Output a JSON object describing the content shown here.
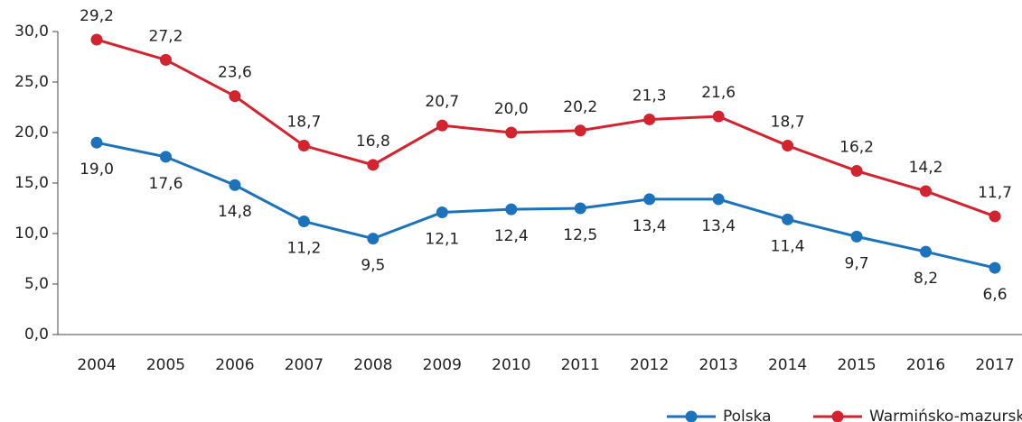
{
  "chart_data": {
    "type": "line",
    "categories": [
      "2004",
      "2005",
      "2006",
      "2007",
      "2008",
      "2009",
      "2010",
      "2011",
      "2012",
      "2013",
      "2014",
      "2015",
      "2016",
      "2017"
    ],
    "series": [
      {
        "name": "Polska",
        "color": "#1c72bb",
        "values": [
          19.0,
          17.6,
          14.8,
          11.2,
          9.5,
          12.1,
          12.4,
          12.5,
          13.4,
          13.4,
          11.4,
          9.7,
          8.2,
          6.6
        ],
        "value_labels": [
          "19,0",
          "17,6",
          "14,8",
          "11,2",
          "9,5",
          "12,1",
          "12,4",
          "12,5",
          "13,4",
          "13,4",
          "11,4",
          "9,7",
          "8,2",
          "6,6"
        ]
      },
      {
        "name": "Warmińsko-mazurskie",
        "color": "#d2232f",
        "values": [
          29.2,
          27.2,
          23.6,
          18.7,
          16.8,
          20.7,
          20.0,
          20.2,
          21.3,
          21.6,
          18.7,
          16.2,
          14.2,
          11.7
        ],
        "value_labels": [
          "29,2",
          "27,2",
          "23,6",
          "18,7",
          "16,8",
          "20,7",
          "20,0",
          "20,2",
          "21,3",
          "21,6",
          "18,7",
          "16,2",
          "14,2",
          "11,7"
        ]
      }
    ],
    "ylim": [
      0,
      30
    ],
    "yticks": [
      {
        "value": 0,
        "label": "0,0"
      },
      {
        "value": 5,
        "label": "5,0"
      },
      {
        "value": 10,
        "label": "10,0"
      },
      {
        "value": 15,
        "label": "15,0"
      },
      {
        "value": 20,
        "label": "20,0"
      },
      {
        "value": 25,
        "label": "25,0"
      },
      {
        "value": 30,
        "label": "30,0"
      }
    ],
    "legend": "bottom"
  }
}
